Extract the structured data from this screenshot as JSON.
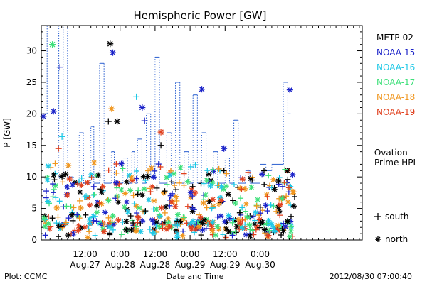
{
  "chart_data": {
    "type": "scatter",
    "title": "Hemispheric Power [GW]",
    "ylabel": "P [GW]",
    "xlabel": "Date and Time",
    "ylim": [
      0,
      34
    ],
    "yticks": [
      0,
      5,
      10,
      15,
      20,
      25,
      30
    ],
    "xlim_hours": [
      -3,
      107
    ],
    "xticks": [
      {
        "hour": 12,
        "line1": "12:00",
        "line2": "Aug.27"
      },
      {
        "hour": 24,
        "line1": "0:00",
        "line2": "Aug.28"
      },
      {
        "hour": 36,
        "line1": "12:00",
        "line2": "Aug.28"
      },
      {
        "hour": 48,
        "line1": "0:00",
        "line2": "Aug.29"
      },
      {
        "hour": 60,
        "line1": "12:00",
        "line2": "Aug.29"
      },
      {
        "hour": 72,
        "line1": "0:00",
        "line2": "Aug.30"
      }
    ],
    "minor_tick_hours": 2,
    "legend": [
      {
        "name": "METP-02",
        "color": "#000000"
      },
      {
        "name": "NOAA-15",
        "color": "#1a22c8"
      },
      {
        "name": "NOAA-16",
        "color": "#1ec8e6"
      },
      {
        "name": "NOAA-17",
        "color": "#3ee07a"
      },
      {
        "name": "NOAA-18",
        "color": "#f0961e"
      },
      {
        "name": "NOAA-19",
        "color": "#e0401e"
      }
    ],
    "ovation": {
      "label_line1": "– Ovation",
      "label_line2": "Prime HPI",
      "color": "#2a5fd0",
      "steps": [
        [
          -3,
          20
        ],
        [
          -1,
          34
        ],
        [
          3,
          10
        ],
        [
          4.5,
          34
        ],
        [
          6,
          10
        ],
        [
          8,
          9
        ],
        [
          10,
          17
        ],
        [
          11.5,
          9
        ],
        [
          14,
          18
        ],
        [
          15,
          9
        ],
        [
          17,
          28
        ],
        [
          18.5,
          9
        ],
        [
          21,
          14
        ],
        [
          22,
          9
        ],
        [
          25,
          13
        ],
        [
          26.5,
          9
        ],
        [
          28,
          14
        ],
        [
          29,
          9
        ],
        [
          30,
          16
        ],
        [
          31.5,
          9
        ],
        [
          33,
          20
        ],
        [
          34.5,
          10
        ],
        [
          36,
          29
        ],
        [
          37.5,
          9
        ],
        [
          40,
          17
        ],
        [
          41.5,
          9
        ],
        [
          43,
          25
        ],
        [
          44.5,
          9
        ],
        [
          46,
          14
        ],
        [
          47.5,
          9
        ],
        [
          49,
          23
        ],
        [
          50.5,
          9
        ],
        [
          52,
          17
        ],
        [
          53.5,
          9
        ],
        [
          56,
          14
        ],
        [
          57.5,
          9
        ],
        [
          60,
          13
        ],
        [
          61.5,
          9
        ],
        [
          63,
          19
        ],
        [
          64.5,
          9
        ],
        [
          67,
          11
        ],
        [
          68.5,
          9
        ],
        [
          72,
          12
        ],
        [
          74,
          11
        ],
        [
          76,
          12
        ],
        [
          78,
          12
        ],
        [
          80,
          25
        ],
        [
          81.5,
          20
        ]
      ],
      "end_hour": 82.5
    },
    "markers_legend": [
      {
        "symbol": "+",
        "label": "south"
      },
      {
        "symbol": "*",
        "label": "north"
      }
    ],
    "labeled_points": [
      {
        "series": "NOAA-15",
        "x": -2.3,
        "y": 19.6,
        "marker": "*"
      },
      {
        "series": "NOAA-17",
        "x": 0.8,
        "y": 31.0,
        "marker": "*"
      },
      {
        "series": "NOAA-15",
        "x": 1.2,
        "y": 20.4,
        "marker": "*"
      },
      {
        "series": "NOAA-15",
        "x": 3.4,
        "y": 27.4,
        "marker": "+"
      },
      {
        "series": "NOAA-16",
        "x": 4.1,
        "y": 16.4,
        "marker": "+"
      },
      {
        "series": "NOAA-19",
        "x": 2.9,
        "y": 14.5,
        "marker": "+"
      },
      {
        "series": "METP-02",
        "x": 4.1,
        "y": 10.1,
        "marker": "*"
      },
      {
        "series": "METP-02",
        "x": 20.6,
        "y": 31.1,
        "marker": "*"
      },
      {
        "series": "NOAA-15",
        "x": 21.5,
        "y": 29.7,
        "marker": "*"
      },
      {
        "series": "NOAA-18",
        "x": 21.1,
        "y": 20.8,
        "marker": "*"
      },
      {
        "series": "METP-02",
        "x": 20.0,
        "y": 18.8,
        "marker": "+"
      },
      {
        "series": "METP-02",
        "x": 23.0,
        "y": 18.8,
        "marker": "*"
      },
      {
        "series": "NOAA-16",
        "x": 29.6,
        "y": 22.7,
        "marker": "+"
      },
      {
        "series": "NOAA-15",
        "x": 31.6,
        "y": 21.0,
        "marker": "*"
      },
      {
        "series": "NOAA-15",
        "x": 32.4,
        "y": 18.9,
        "marker": "+"
      },
      {
        "series": "NOAA-19",
        "x": 38.0,
        "y": 17.1,
        "marker": "*"
      },
      {
        "series": "METP-02",
        "x": 38.0,
        "y": 15.0,
        "marker": "+"
      },
      {
        "series": "NOAA-15",
        "x": 52.0,
        "y": 23.9,
        "marker": "*"
      },
      {
        "series": "NOAA-15",
        "x": 59.6,
        "y": 14.5,
        "marker": "*"
      },
      {
        "series": "NOAA-15",
        "x": 82.2,
        "y": 23.8,
        "marker": "*"
      }
    ],
    "background_points_note": "dense cluster of mixed-series points between 0 and 10 GW across the full time range"
  },
  "footer": {
    "plot_credit": "Plot: CCMC",
    "timestamp": "2012/08/30 07:00:40"
  }
}
